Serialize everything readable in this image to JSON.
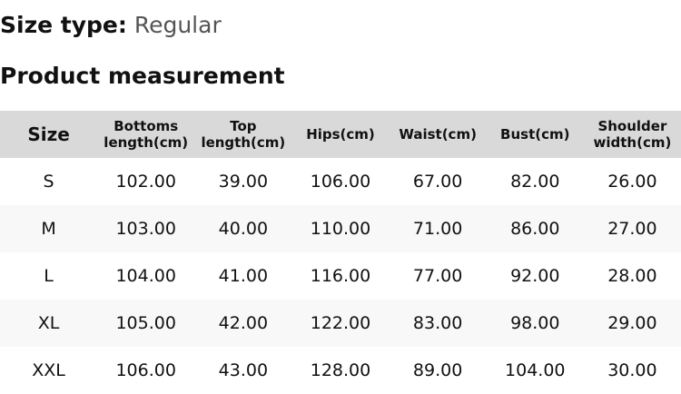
{
  "size_type": {
    "label": "Size type:",
    "value": "Regular"
  },
  "title": "Product measurement",
  "table": {
    "headers": [
      [
        "Size"
      ],
      [
        "Bottoms",
        "length(cm)"
      ],
      [
        "Top",
        "length(cm)"
      ],
      [
        "Hips(cm)"
      ],
      [
        "Waist(cm)"
      ],
      [
        "Bust(cm)"
      ],
      [
        "Shoulder",
        "width(cm)"
      ]
    ],
    "rows": [
      [
        "S",
        "102.00",
        "39.00",
        "106.00",
        "67.00",
        "82.00",
        "26.00"
      ],
      [
        "M",
        "103.00",
        "40.00",
        "110.00",
        "71.00",
        "86.00",
        "27.00"
      ],
      [
        "L",
        "104.00",
        "41.00",
        "116.00",
        "77.00",
        "92.00",
        "28.00"
      ],
      [
        "XL",
        "105.00",
        "42.00",
        "122.00",
        "83.00",
        "98.00",
        "29.00"
      ],
      [
        "XXL",
        "106.00",
        "43.00",
        "128.00",
        "89.00",
        "104.00",
        "30.00"
      ]
    ]
  },
  "colors": {
    "header_bg": "#d9d9d9",
    "alt_row_bg": "#f8f8f8"
  }
}
